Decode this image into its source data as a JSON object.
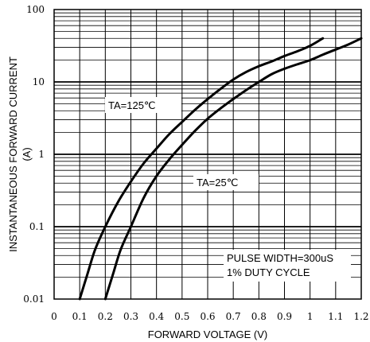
{
  "chart_data": {
    "type": "line",
    "xlabel": "FORWARD VOLTAGE (V)",
    "ylabel": [
      "INSTANTANEOUS FORWARD CURRENT",
      "(A)"
    ],
    "xlim": [
      0,
      1.2
    ],
    "ylim": [
      0.01,
      100
    ],
    "yscale": "log",
    "grid": true,
    "x_ticks": [
      "0",
      "0.1",
      "0.2",
      "0.3",
      "0.4",
      "0.5",
      "0.6",
      "0.7",
      "0.8",
      "0.9",
      "1",
      "1.1",
      "1.2"
    ],
    "y_ticks": [
      "0.01",
      "0.1",
      "1",
      "10",
      "100"
    ],
    "series": [
      {
        "name": "TA=125℃",
        "x": [
          0.1,
          0.13,
          0.16,
          0.2,
          0.25,
          0.3,
          0.35,
          0.4,
          0.45,
          0.5,
          0.55,
          0.6,
          0.65,
          0.7,
          0.75,
          0.8,
          0.85,
          0.9,
          0.95,
          1.0,
          1.05
        ],
        "y": [
          0.01,
          0.022,
          0.048,
          0.1,
          0.22,
          0.42,
          0.75,
          1.2,
          1.9,
          2.8,
          4.1,
          5.8,
          8.0,
          10.8,
          13.7,
          16.5,
          19.2,
          22.8,
          26.5,
          31.5,
          40
        ]
      },
      {
        "name": "TA=25℃",
        "x": [
          0.2,
          0.23,
          0.26,
          0.3,
          0.35,
          0.4,
          0.45,
          0.5,
          0.55,
          0.6,
          0.65,
          0.7,
          0.75,
          0.8,
          0.85,
          0.9,
          0.95,
          1.0,
          1.05,
          1.1,
          1.15,
          1.2
        ],
        "y": [
          0.01,
          0.022,
          0.048,
          0.1,
          0.25,
          0.5,
          0.85,
          1.35,
          2.1,
          3.1,
          4.3,
          5.8,
          7.7,
          10.0,
          12.8,
          15.2,
          17.5,
          20.0,
          23.8,
          28.0,
          33.0,
          40
        ]
      }
    ],
    "annotations": [
      "TA=125℃",
      "TA=25℃",
      "PULSE WIDTH=300uS",
      "1% DUTY CYCLE"
    ]
  }
}
